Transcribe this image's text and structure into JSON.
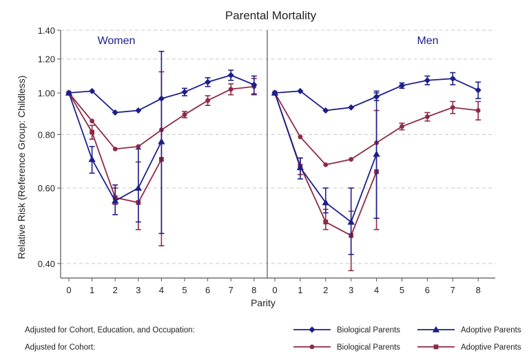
{
  "chart_data": {
    "type": "line",
    "title": "Parental Mortality",
    "xlabel": "Parity",
    "ylabel": "Relative Risk (Reference Group: Childless)",
    "y_scale": "log",
    "ylim": [
      0.37,
      1.4
    ],
    "yticks": [
      "0.40",
      "0.60",
      "0.80",
      "1.00",
      "1.20",
      "1.40"
    ],
    "yticks_values": [
      0.4,
      0.6,
      0.8,
      1.0,
      1.2,
      1.4
    ],
    "x": [
      0,
      1,
      2,
      3,
      4,
      5,
      6,
      7,
      8
    ],
    "xticks": [
      "0",
      "1",
      "2",
      "3",
      "4",
      "5",
      "6",
      "7",
      "8"
    ],
    "colors": {
      "full": "#1c1f8a",
      "cohort": "#8e2a45",
      "grid": "#c8c8c8",
      "axis": "#555555"
    },
    "legend": {
      "row1_label": "Adjusted for Cohort, Education, and Occupation:",
      "row2_label": "Adjusted for Cohort:",
      "bio_full": "Biological Parents",
      "adopt_full": "Adoptive Parents",
      "bio_cohort": "Biological Parents",
      "adopt_cohort": "Adoptive Parents"
    },
    "panels": [
      {
        "title": "Women",
        "series": [
          {
            "name": "Biological Parents (Cohort, Education, Occupation)",
            "color": "#1c1f8a",
            "marker": "diamond",
            "x": [
              0,
              1,
              2,
              3,
              4,
              5,
              6,
              7,
              8
            ],
            "values": [
              1.0,
              1.01,
              0.9,
              0.91,
              0.97,
              1.005,
              1.06,
              1.1,
              1.045
            ],
            "err_low": [
              null,
              null,
              null,
              null,
              null,
              0.985,
              1.035,
              1.07,
              0.995
            ],
            "err_high": [
              null,
              null,
              null,
              null,
              null,
              1.025,
              1.085,
              1.13,
              1.095
            ]
          },
          {
            "name": "Adoptive Parents (Cohort, Education, Occupation)",
            "color": "#1c1f8a",
            "marker": "triangle",
            "x": [
              0,
              1,
              2,
              3,
              4
            ],
            "values": [
              1.0,
              0.7,
              0.56,
              0.6,
              0.77
            ],
            "err_low": [
              null,
              0.65,
              0.52,
              0.5,
              0.47
            ],
            "err_high": [
              null,
              0.75,
              0.61,
              0.74,
              1.25
            ]
          },
          {
            "name": "Biological Parents (Cohort)",
            "color": "#8e2a45",
            "marker": "circle",
            "x": [
              0,
              1,
              2,
              3,
              4,
              5,
              6,
              7,
              8
            ],
            "values": [
              1.0,
              0.86,
              0.74,
              0.75,
              0.82,
              0.89,
              0.96,
              1.02,
              1.035
            ],
            "err_low": [
              null,
              null,
              null,
              null,
              null,
              0.875,
              0.935,
              0.99,
              0.99
            ],
            "err_high": [
              null,
              null,
              null,
              null,
              null,
              0.905,
              0.985,
              1.05,
              1.08
            ]
          },
          {
            "name": "Adoptive Parents (Cohort)",
            "color": "#8e2a45",
            "marker": "square",
            "x": [
              0,
              1,
              2,
              3,
              4
            ],
            "values": [
              1.0,
              0.81,
              0.57,
              0.555,
              0.7
            ],
            "err_low": [
              null,
              0.78,
              0.55,
              0.48,
              0.44
            ],
            "err_high": [
              null,
              0.84,
              0.6,
              0.69,
              1.12
            ]
          }
        ]
      },
      {
        "title": "Men",
        "series": [
          {
            "name": "Biological Parents (Cohort, Education, Occupation)",
            "color": "#1c1f8a",
            "marker": "diamond",
            "x": [
              0,
              1,
              2,
              3,
              4,
              5,
              6,
              7,
              8
            ],
            "values": [
              1.0,
              1.01,
              0.91,
              0.925,
              0.98,
              1.04,
              1.07,
              1.08,
              1.015
            ],
            "err_low": [
              null,
              null,
              null,
              null,
              0.96,
              1.025,
              1.045,
              1.045,
              0.97
            ],
            "err_high": [
              null,
              null,
              null,
              null,
              1.0,
              1.055,
              1.095,
              1.115,
              1.06
            ]
          },
          {
            "name": "Adoptive Parents (Cohort, Education, Occupation)",
            "color": "#1c1f8a",
            "marker": "triangle",
            "x": [
              0,
              1,
              2,
              3,
              4
            ],
            "values": [
              1.0,
              0.67,
              0.555,
              0.5,
              0.72
            ],
            "err_low": [
              null,
              0.63,
              0.525,
              0.42,
              0.51
            ],
            "err_high": [
              null,
              0.705,
              0.6,
              0.6,
              1.01
            ]
          },
          {
            "name": "Biological Parents (Cohort)",
            "color": "#8e2a45",
            "marker": "circle",
            "x": [
              0,
              1,
              2,
              3,
              4,
              5,
              6,
              7,
              8
            ],
            "values": [
              1.0,
              0.79,
              0.68,
              0.7,
              0.765,
              0.835,
              0.88,
              0.925,
              0.91
            ],
            "err_low": [
              null,
              null,
              null,
              null,
              null,
              0.82,
              0.86,
              0.895,
              0.865
            ],
            "err_high": [
              null,
              null,
              null,
              null,
              null,
              0.85,
              0.9,
              0.955,
              0.955
            ]
          },
          {
            "name": "Adoptive Parents (Cohort)",
            "color": "#8e2a45",
            "marker": "square",
            "x": [
              0,
              1,
              2,
              3,
              4
            ],
            "values": [
              1.0,
              0.675,
              0.5,
              0.465,
              0.655
            ],
            "err_low": [
              null,
              0.645,
              0.48,
              0.385,
              0.48
            ],
            "err_high": [
              null,
              0.705,
              0.535,
              0.53,
              0.91
            ]
          }
        ]
      }
    ]
  }
}
